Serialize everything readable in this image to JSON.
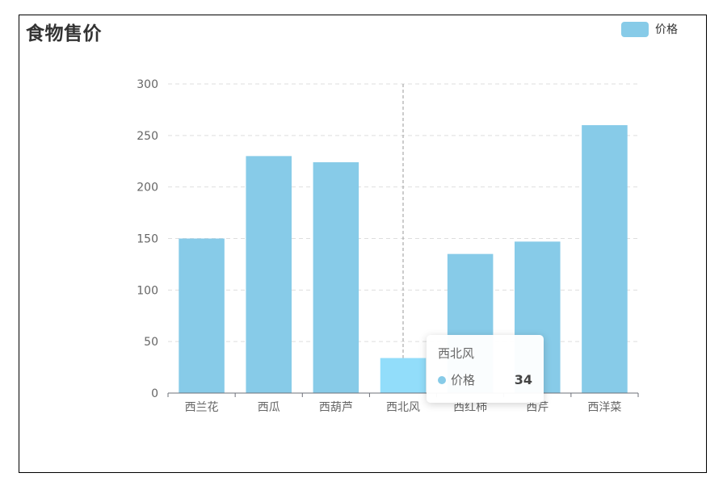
{
  "chart_data": {
    "type": "bar",
    "title": "食物售价",
    "categories": [
      "西兰花",
      "西瓜",
      "西葫芦",
      "西北风",
      "西红柿",
      "西芹",
      "西洋菜"
    ],
    "series": [
      {
        "name": "价格",
        "values": [
          150,
          230,
          224,
          34,
          135,
          147,
          260
        ]
      }
    ],
    "ylim": [
      0,
      300
    ],
    "yticks": [
      0,
      50,
      100,
      150,
      200,
      250,
      300
    ],
    "grid": true,
    "legend_position": "top-right",
    "colors": {
      "bar": "#87CBE8",
      "bar_highlight": "#92DDFA"
    },
    "highlighted_category": "西北风"
  },
  "tooltip": {
    "title": "西北风",
    "series_name": "价格",
    "value": "34"
  }
}
